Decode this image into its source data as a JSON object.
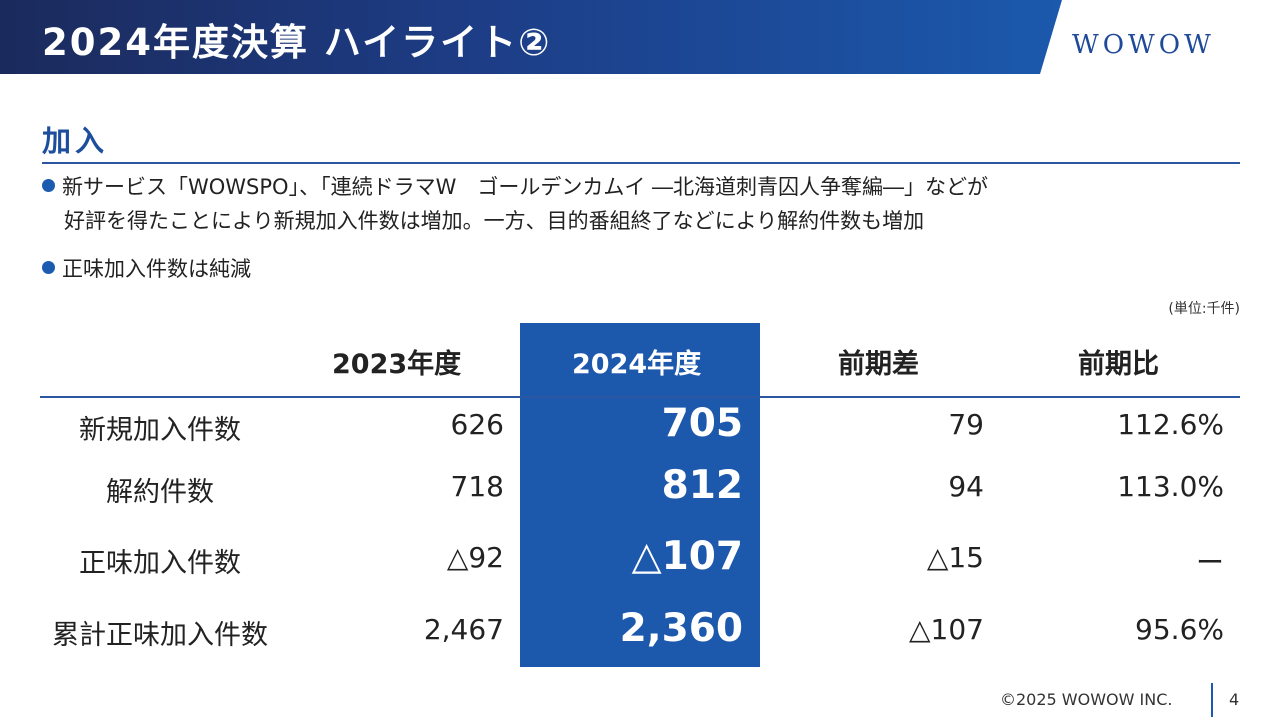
{
  "header": {
    "title": "2024年度決算 ハイライト②",
    "logo_text": "WOWOW"
  },
  "section": {
    "heading": "加入",
    "bullets": [
      {
        "line1": "新サービス「WOWSPO」、「連続ドラマW　ゴールデンカムイ ―北海道刺青囚人争奪編―」などが",
        "line2": "好評を得たことにより新規加入件数は増加。一方、目的番組終了などにより解約件数も増加"
      },
      {
        "line1": "正味加入件数は純減"
      }
    ],
    "unit_note": "(単位:千件)"
  },
  "table": {
    "headers": [
      "2023年度",
      "2024年度",
      "前期差",
      "前期比"
    ],
    "rows": [
      {
        "label": "新規加入件数",
        "v2023": "626",
        "v2024": "705",
        "diff": "79",
        "ratio": "112.6%"
      },
      {
        "label": "解約件数",
        "v2023": "718",
        "v2024": "812",
        "diff": "94",
        "ratio": "113.0%"
      },
      {
        "label": "正味加入件数",
        "v2023": "△92",
        "v2024": "△107",
        "diff": "△15",
        "ratio": "ー"
      },
      {
        "label": "累計正味加入件数",
        "v2023": "2,467",
        "v2024": "2,360",
        "diff": "△107",
        "ratio": "95.6%"
      }
    ],
    "highlight_color": "#1c58ac"
  },
  "footer": {
    "copyright": "©2025 WOWOW INC.",
    "page_number": "4"
  }
}
